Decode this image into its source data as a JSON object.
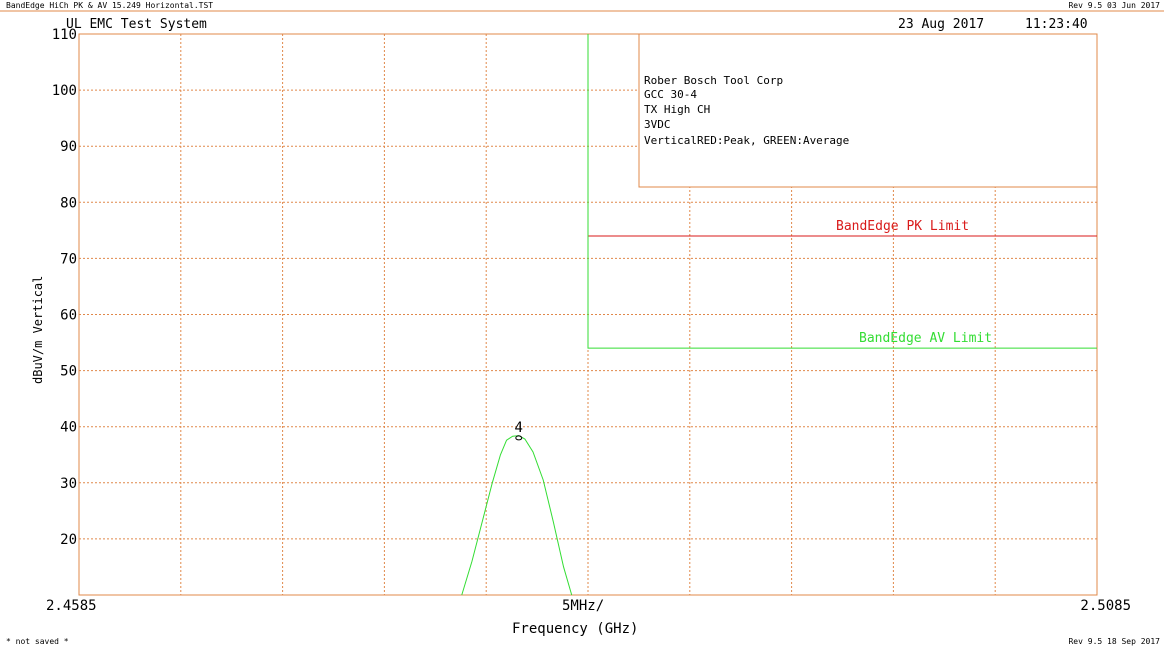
{
  "header": {
    "file": "BandEdge HiCh PK & AV 15.249 Horizontal.TST",
    "rev_top": "Rev 9.5 03 Jun 2017",
    "system": "UL EMC Test System",
    "date": "23 Aug 2017",
    "time": "11:23:40"
  },
  "footer": {
    "status": "* not saved *",
    "rev_bottom": "Rev 9.5 18 Sep 2017"
  },
  "info_box": {
    "lines": [
      "Rober Bosch Tool Corp",
      "GCC 30-4",
      "TX High CH",
      "3VDC",
      "VerticalRED:Peak, GREEN:Average"
    ]
  },
  "colors": {
    "grid": "#e0884a",
    "peak_limit": "#d91a1a",
    "avg": "#33dd33",
    "text": "#000000"
  },
  "chart_data": {
    "type": "line",
    "xlabel": "Frequency (GHz)",
    "ylabel": "dBuV/m Vertical",
    "x_start_label": "2.4585",
    "x_stop_label": "2.5085",
    "x_div_label": "5MHz/",
    "xlim": [
      2.4585,
      2.5085
    ],
    "ylim": [
      10,
      110
    ],
    "y_ticks": [
      20,
      30,
      40,
      50,
      60,
      70,
      80,
      90,
      100,
      110
    ],
    "grid": true,
    "series": [
      {
        "name": "BandEdge PK Limit",
        "color": "#d91a1a",
        "x": [
          2.4835,
          2.5085
        ],
        "y": [
          74,
          74
        ]
      },
      {
        "name": "BandEdge AV Limit",
        "color": "#33dd33",
        "x": [
          2.4835,
          2.4835,
          2.5085
        ],
        "y": [
          110,
          54,
          54
        ]
      },
      {
        "name": "trace",
        "color": "#33dd33",
        "x": [
          2.4773,
          2.4778,
          2.4783,
          2.4788,
          2.4792,
          2.4795,
          2.4798,
          2.4801,
          2.4804,
          2.4808,
          2.4813,
          2.4818,
          2.4823,
          2.4827
        ],
        "y": [
          10,
          16,
          23,
          30,
          35,
          37.6,
          38.3,
          38.4,
          37.8,
          35.5,
          30.5,
          23,
          15,
          10
        ]
      }
    ],
    "markers": [
      {
        "label": "4",
        "x": 2.4801,
        "y": 38.0
      }
    ]
  }
}
